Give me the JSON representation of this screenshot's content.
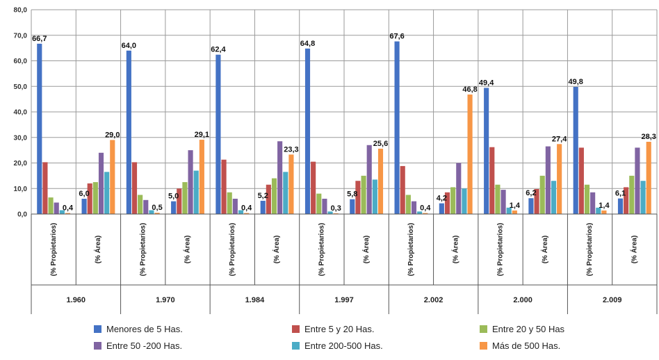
{
  "chart_data": {
    "type": "bar",
    "y_axis": {
      "min": 0,
      "max": 80,
      "step": 10,
      "tick_labels": [
        "0,0",
        "10,0",
        "20,0",
        "30,0",
        "40,0",
        "50,0",
        "60,0",
        "70,0",
        "80,0"
      ],
      "grid": true
    },
    "groups": [
      {
        "label": "1.960",
        "categories": [
          "(% Propietarios)",
          "(% Área)"
        ]
      },
      {
        "label": "1.970",
        "categories": [
          "(% Propietarios)",
          "(% Área)"
        ]
      },
      {
        "label": "1.984",
        "categories": [
          "(% Propietarios)",
          "(% Área)"
        ]
      },
      {
        "label": "1.997",
        "categories": [
          "(% Propietarios)",
          "(% Área)"
        ]
      },
      {
        "label": "2.002",
        "categories": [
          "(% Propietarios)",
          "(% Área)"
        ]
      },
      {
        "label": "2.000",
        "categories": [
          "(% Propietarios)",
          "(% Área)"
        ]
      },
      {
        "label": "2.009",
        "categories": [
          "(% Propietarios)",
          "(% Área)"
        ]
      }
    ],
    "series": [
      {
        "name": "Menores de 5 Has.",
        "color": "#4472C4",
        "values": [
          66.7,
          6.0,
          64.0,
          5.0,
          62.4,
          5.2,
          64.8,
          5.8,
          67.6,
          4.2,
          49.4,
          6.2,
          49.8,
          6.1
        ]
      },
      {
        "name": "Entre 5 y 20  Has.",
        "color": "#C0504D",
        "values": [
          20.3,
          12.0,
          20.3,
          10.0,
          21.3,
          11.5,
          20.5,
          13.0,
          18.8,
          8.5,
          26.2,
          9.8,
          26.0,
          10.5
        ]
      },
      {
        "name": "Entre 20 y 50 Has",
        "color": "#9BBB59",
        "values": [
          6.5,
          12.5,
          7.5,
          12.5,
          8.5,
          14.0,
          8.0,
          15.0,
          7.5,
          10.5,
          11.5,
          15.0,
          11.5,
          15.0
        ]
      },
      {
        "name": "Entre 50 -200 Has.",
        "color": "#8064A2",
        "values": [
          4.5,
          24.0,
          5.5,
          25.0,
          6.0,
          28.5,
          6.0,
          27.0,
          5.0,
          20.0,
          9.5,
          26.5,
          8.5,
          26.0
        ]
      },
      {
        "name": "Entre 200-500 Has.",
        "color": "#4BACC6",
        "values": [
          1.5,
          16.5,
          1.5,
          17.0,
          1.5,
          16.5,
          1.0,
          13.5,
          1.0,
          10.0,
          2.5,
          13.0,
          2.5,
          13.0
        ]
      },
      {
        "name": "Más de 500  Has.",
        "color": "#F79646",
        "values": [
          0.4,
          29.0,
          0.5,
          29.1,
          0.4,
          23.3,
          0.3,
          25.6,
          0.4,
          46.8,
          1.4,
          27.4,
          1.4,
          28.3
        ]
      }
    ],
    "data_labels": [
      {
        "category_index": 0,
        "series_index": 0,
        "text": "66,7"
      },
      {
        "category_index": 0,
        "series_index": 5,
        "text": "0,4"
      },
      {
        "category_index": 1,
        "series_index": 0,
        "text": "6,0"
      },
      {
        "category_index": 1,
        "series_index": 5,
        "text": "29,0"
      },
      {
        "category_index": 2,
        "series_index": 0,
        "text": "64,0"
      },
      {
        "category_index": 2,
        "series_index": 5,
        "text": "0,5"
      },
      {
        "category_index": 3,
        "series_index": 0,
        "text": "5,0"
      },
      {
        "category_index": 3,
        "series_index": 5,
        "text": "29,1"
      },
      {
        "category_index": 4,
        "series_index": 0,
        "text": "62,4"
      },
      {
        "category_index": 4,
        "series_index": 5,
        "text": "0,4"
      },
      {
        "category_index": 5,
        "series_index": 0,
        "text": "5,2"
      },
      {
        "category_index": 5,
        "series_index": 5,
        "text": "23,3"
      },
      {
        "category_index": 6,
        "series_index": 0,
        "text": "64,8"
      },
      {
        "category_index": 6,
        "series_index": 5,
        "text": "0,3"
      },
      {
        "category_index": 7,
        "series_index": 0,
        "text": "5,8"
      },
      {
        "category_index": 7,
        "series_index": 5,
        "text": "25,6"
      },
      {
        "category_index": 8,
        "series_index": 0,
        "text": "67,6"
      },
      {
        "category_index": 8,
        "series_index": 5,
        "text": "0,4"
      },
      {
        "category_index": 9,
        "series_index": 0,
        "text": "4,2"
      },
      {
        "category_index": 9,
        "series_index": 5,
        "text": "46,8"
      },
      {
        "category_index": 10,
        "series_index": 0,
        "text": "49,4"
      },
      {
        "category_index": 10,
        "series_index": 5,
        "text": "1,4"
      },
      {
        "category_index": 11,
        "series_index": 0,
        "text": "6,2"
      },
      {
        "category_index": 11,
        "series_index": 5,
        "text": "27,4"
      },
      {
        "category_index": 12,
        "series_index": 0,
        "text": "49,8"
      },
      {
        "category_index": 12,
        "series_index": 5,
        "text": "1,4"
      },
      {
        "category_index": 13,
        "series_index": 0,
        "text": "6,1"
      },
      {
        "category_index": 13,
        "series_index": 5,
        "text": "28,3"
      }
    ],
    "legend_position": "bottom"
  }
}
